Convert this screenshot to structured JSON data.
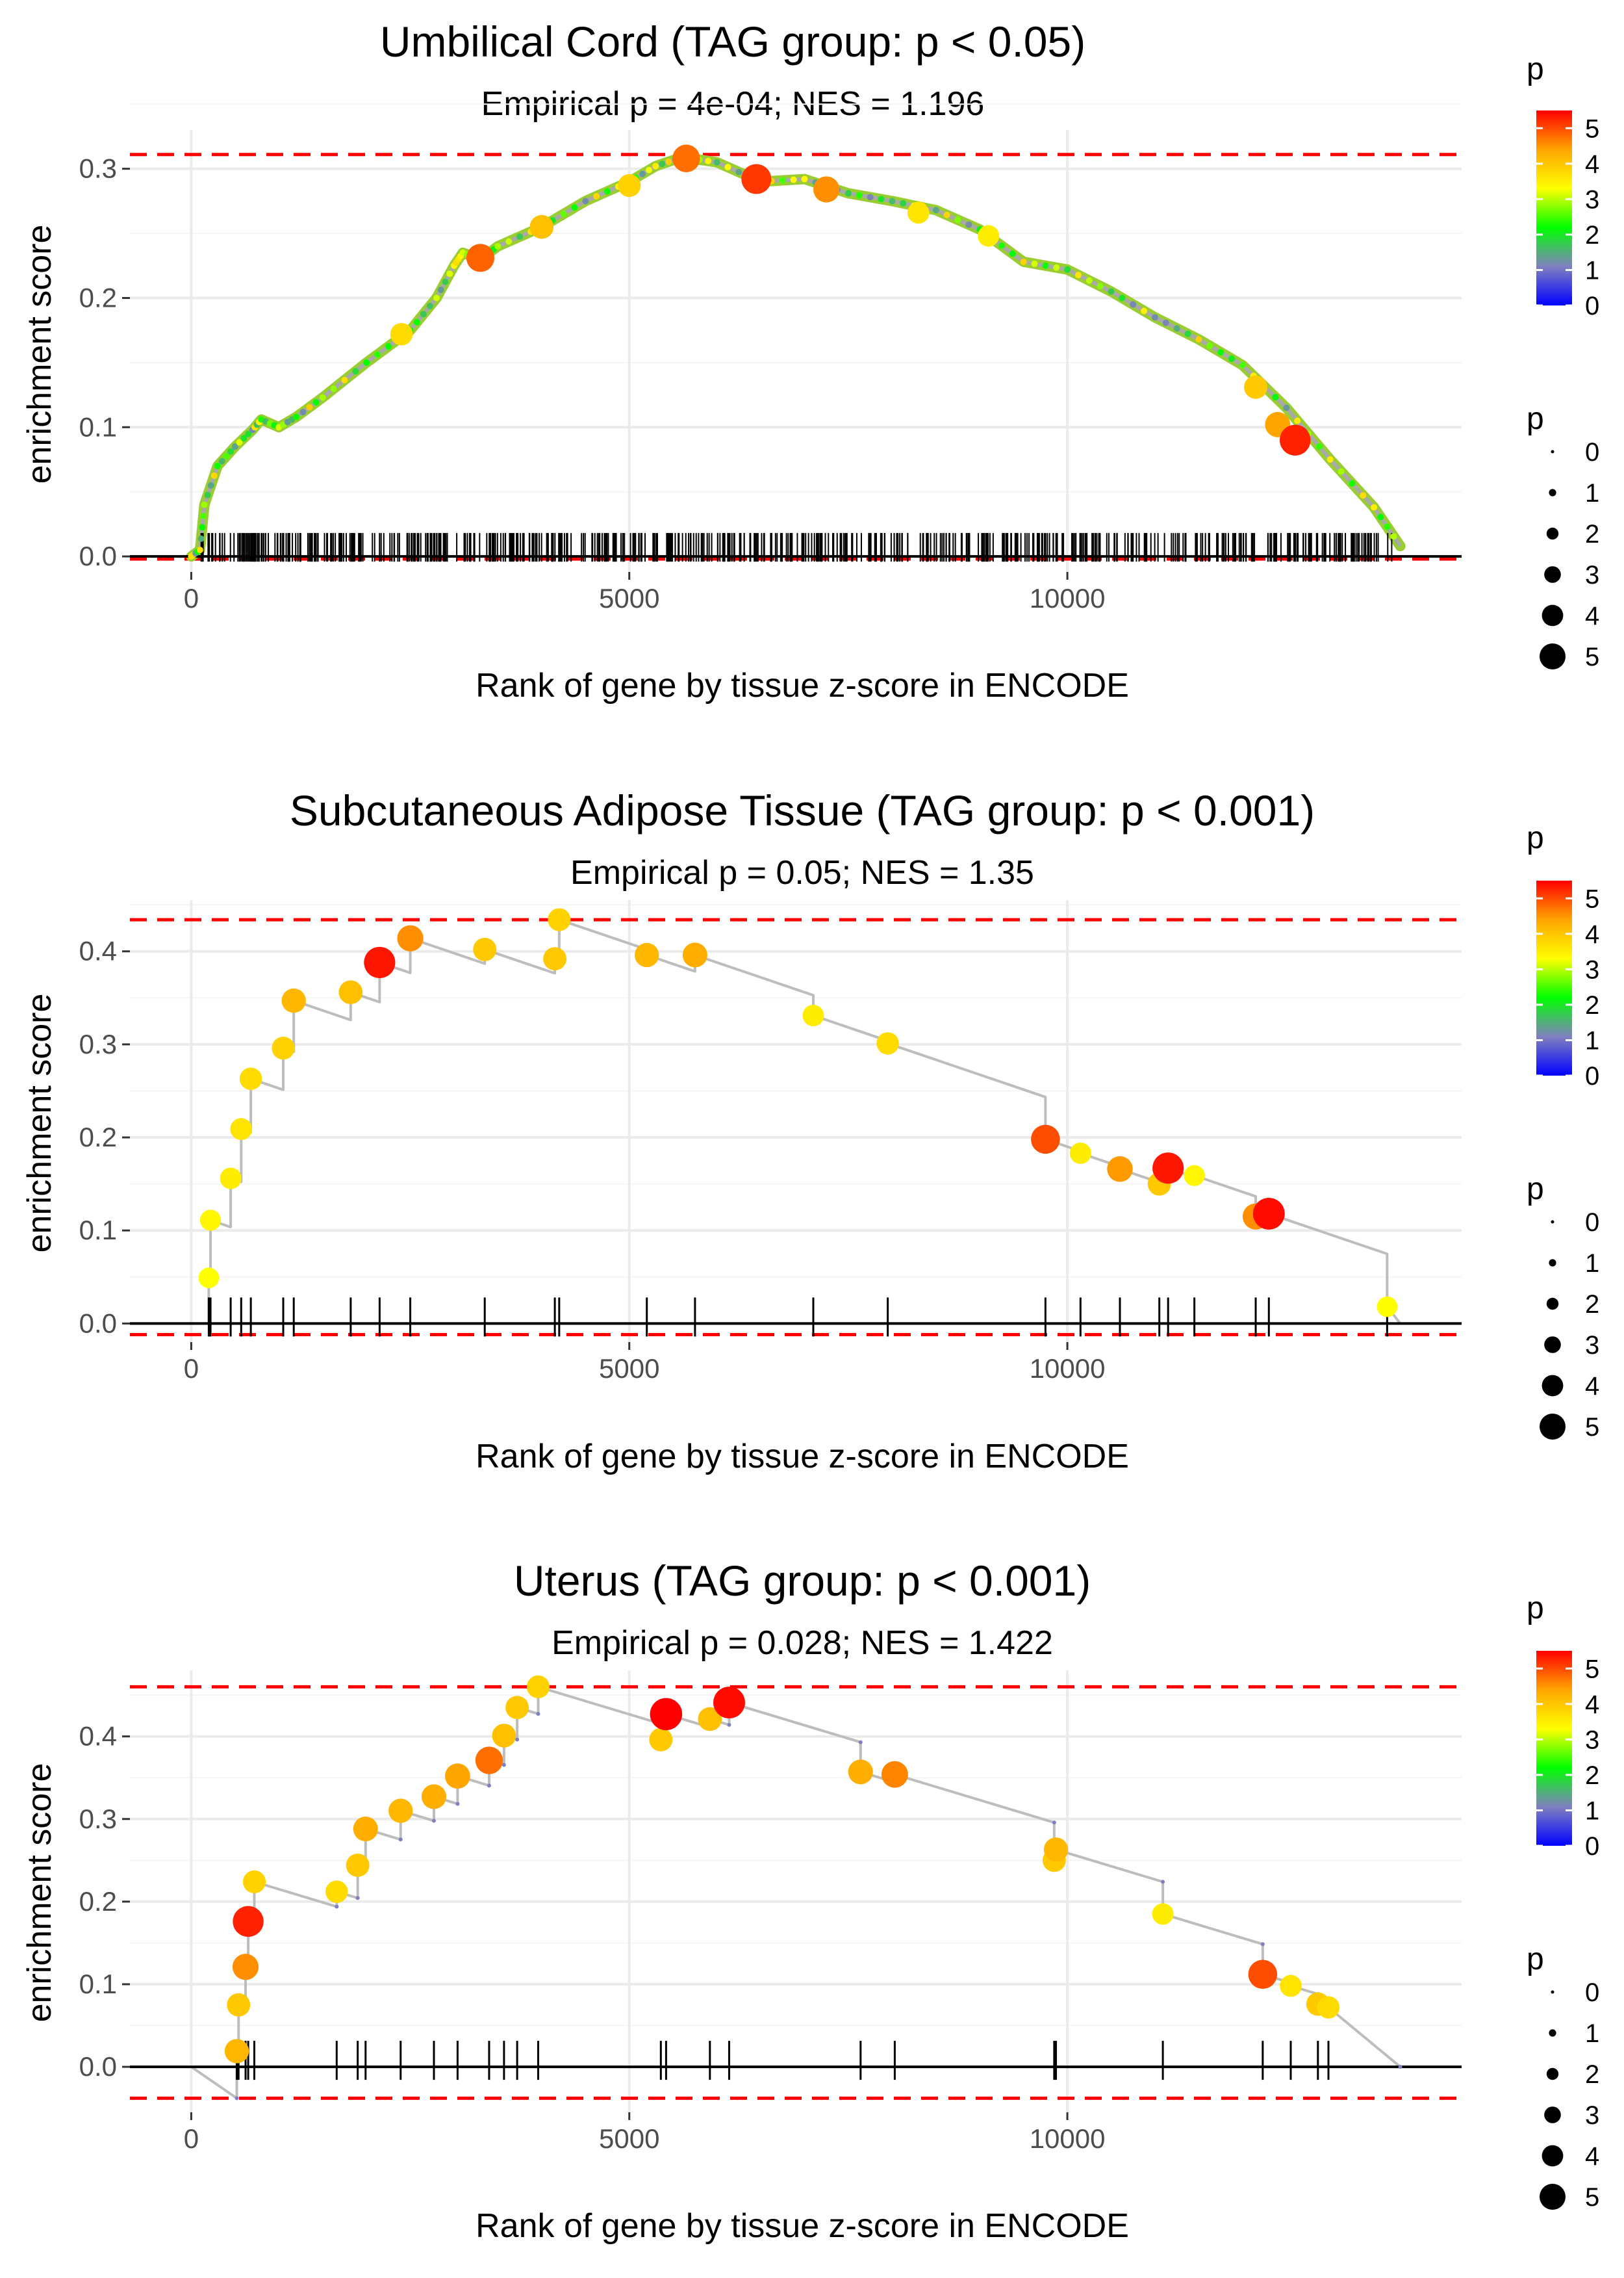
{
  "figure": {
    "x_axis_label": "Rank of gene by tissue z-score in ENCODE",
    "y_axis_label": "enrichment score",
    "legend_color_title": "p",
    "legend_size_title": "p",
    "legend_colors": [
      "#0000ff",
      "#8080c0",
      "#00ff00",
      "#ffff00",
      "#ffa500",
      "#ff0000"
    ]
  },
  "chart_data": [
    {
      "type": "line",
      "title": "Umbilical Cord (TAG group: p < 0.05)",
      "subtitle": "Empirical p = 4e-04; NES = 1.196",
      "xlabel": "Rank of gene by tissue z-score in ENCODE",
      "ylabel": "enrichment score",
      "xlim": [
        -700,
        14500
      ],
      "ylim": [
        -0.012,
        0.33
      ],
      "x_ticks": [
        0,
        5000,
        10000
      ],
      "x_tick_labels": [
        "0",
        "5000",
        "10000"
      ],
      "y_ticks": [
        0,
        0.1,
        0.2,
        0.3
      ],
      "y_tick_labels": [
        "0.0",
        "0.1",
        "0.2",
        "0.3"
      ],
      "max_es": 0.311,
      "min_es": -0.002,
      "n_genes": 13800,
      "n_hits": 600,
      "curve": [
        [
          0,
          0
        ],
        [
          100,
          0.005
        ],
        [
          150,
          0.04
        ],
        [
          300,
          0.07
        ],
        [
          500,
          0.085
        ],
        [
          700,
          0.098
        ],
        [
          800,
          0.106
        ],
        [
          1000,
          0.1
        ],
        [
          1200,
          0.108
        ],
        [
          1500,
          0.123
        ],
        [
          2000,
          0.15
        ],
        [
          2500,
          0.175
        ],
        [
          2800,
          0.2
        ],
        [
          3000,
          0.225
        ],
        [
          3100,
          0.235
        ],
        [
          3300,
          0.23
        ],
        [
          3500,
          0.24
        ],
        [
          4000,
          0.255
        ],
        [
          4500,
          0.275
        ],
        [
          5000,
          0.29
        ],
        [
          5300,
          0.302
        ],
        [
          5600,
          0.309
        ],
        [
          6000,
          0.305
        ],
        [
          6500,
          0.29
        ],
        [
          7000,
          0.292
        ],
        [
          7500,
          0.281
        ],
        [
          8000,
          0.275
        ],
        [
          8500,
          0.268
        ],
        [
          9000,
          0.253
        ],
        [
          9500,
          0.228
        ],
        [
          10000,
          0.222
        ],
        [
          10500,
          0.205
        ],
        [
          11000,
          0.185
        ],
        [
          11500,
          0.168
        ],
        [
          12000,
          0.148
        ],
        [
          12500,
          0.115
        ],
        [
          13000,
          0.075
        ],
        [
          13500,
          0.038
        ],
        [
          13800,
          0.008
        ]
      ],
      "points": [
        [
          3300,
          0.231,
          4.6
        ],
        [
          5650,
          0.308,
          4.5
        ],
        [
          6450,
          0.292,
          5.0
        ],
        [
          7250,
          0.284,
          4.2
        ],
        [
          12400,
          0.102,
          4.0
        ],
        [
          12600,
          0.09,
          5.2
        ],
        [
          4000,
          0.255,
          3.7
        ],
        [
          5000,
          0.287,
          3.5
        ],
        [
          12150,
          0.131,
          3.6
        ],
        [
          2400,
          0.172,
          3.4
        ],
        [
          8300,
          0.266,
          3.3
        ],
        [
          9100,
          0.248,
          3.2
        ]
      ]
    },
    {
      "type": "line",
      "title": "Subcutaneous Adipose Tissue (TAG group: p < 0.001)",
      "subtitle": "Empirical p = 0.05; NES = 1.35",
      "xlabel": "Rank of gene by tissue z-score in ENCODE",
      "ylabel": "enrichment score",
      "xlim": [
        -700,
        14500
      ],
      "ylim": [
        -0.02,
        0.455
      ],
      "x_ticks": [
        0,
        5000,
        10000
      ],
      "x_tick_labels": [
        "0",
        "5000",
        "10000"
      ],
      "y_ticks": [
        0,
        0.1,
        0.2,
        0.3,
        0.4
      ],
      "y_tick_labels": [
        "0.0",
        "0.1",
        "0.2",
        "0.3",
        "0.4"
      ],
      "max_es": 0.434,
      "min_es": -0.012,
      "n_genes": 13800,
      "hits": [
        [
          200,
          0.049,
          3.0
        ],
        [
          220,
          0.111,
          3.1
        ],
        [
          450,
          0.156,
          3.2
        ],
        [
          570,
          0.209,
          3.3
        ],
        [
          680,
          0.263,
          3.4
        ],
        [
          1050,
          0.296,
          3.5
        ],
        [
          1170,
          0.347,
          3.8
        ],
        [
          1820,
          0.356,
          3.7
        ],
        [
          2150,
          0.388,
          5.3
        ],
        [
          2500,
          0.414,
          4.2
        ],
        [
          3350,
          0.402,
          3.6
        ],
        [
          4150,
          0.392,
          3.6
        ],
        [
          4200,
          0.434,
          3.5
        ],
        [
          5200,
          0.396,
          3.8
        ],
        [
          5750,
          0.396,
          3.9
        ],
        [
          7100,
          0.331,
          3.2
        ],
        [
          7950,
          0.301,
          3.4
        ],
        [
          9750,
          0.198,
          4.8
        ],
        [
          10150,
          0.183,
          3.2
        ],
        [
          10600,
          0.166,
          4.1
        ],
        [
          11050,
          0.15,
          3.6
        ],
        [
          11150,
          0.167,
          5.3
        ],
        [
          11450,
          0.159,
          3.1
        ],
        [
          12150,
          0.115,
          4.2
        ],
        [
          12300,
          0.118,
          5.4
        ],
        [
          13650,
          0.018,
          3.0
        ]
      ]
    },
    {
      "type": "line",
      "title": "Uterus (TAG group: p < 0.001)",
      "subtitle": "Empirical p = 0.028; NES = 1.422",
      "xlabel": "Rank of gene by tissue z-score in ENCODE",
      "ylabel": "enrichment score",
      "xlim": [
        -700,
        14500
      ],
      "ylim": [
        -0.055,
        0.48
      ],
      "x_ticks": [
        0,
        5000,
        10000
      ],
      "x_tick_labels": [
        "0",
        "5000",
        "10000"
      ],
      "y_ticks": [
        0,
        0.1,
        0.2,
        0.3,
        0.4
      ],
      "y_tick_labels": [
        "0.0",
        "0.1",
        "0.2",
        "0.3",
        "0.4"
      ],
      "max_es": 0.46,
      "min_es": -0.038,
      "n_genes": 13800,
      "hits": [
        [
          520,
          0.019,
          3.8
        ],
        [
          540,
          0.075,
          3.6
        ],
        [
          620,
          0.121,
          4.2
        ],
        [
          650,
          0.176,
          5.2
        ],
        [
          720,
          0.224,
          3.5
        ],
        [
          1660,
          0.212,
          3.4
        ],
        [
          1900,
          0.244,
          3.6
        ],
        [
          1990,
          0.288,
          3.9
        ],
        [
          2390,
          0.31,
          3.8
        ],
        [
          2770,
          0.327,
          3.9
        ],
        [
          3040,
          0.352,
          4.0
        ],
        [
          3400,
          0.371,
          4.5
        ],
        [
          3570,
          0.401,
          3.7
        ],
        [
          3720,
          0.435,
          3.6
        ],
        [
          3960,
          0.46,
          3.5
        ],
        [
          5360,
          0.396,
          3.6
        ],
        [
          5420,
          0.427,
          5.5
        ],
        [
          5920,
          0.421,
          3.7
        ],
        [
          6140,
          0.441,
          5.4
        ],
        [
          7640,
          0.357,
          3.9
        ],
        [
          8030,
          0.354,
          4.3
        ],
        [
          9850,
          0.25,
          3.6
        ],
        [
          9870,
          0.263,
          3.8
        ],
        [
          11090,
          0.185,
          3.2
        ],
        [
          12230,
          0.112,
          4.8
        ],
        [
          12550,
          0.098,
          3.3
        ],
        [
          12860,
          0.076,
          3.6
        ],
        [
          12980,
          0.072,
          3.4
        ]
      ]
    }
  ]
}
